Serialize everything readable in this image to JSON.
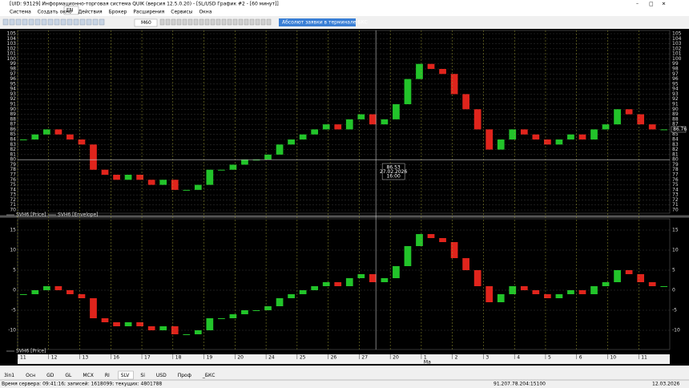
{
  "window": {
    "title": "[UID: 93129] Информационно-торговая система QUIK (версия 12.5.0.20) - [SL/USD График #2 - [60 минут]]"
  },
  "menu": [
    "Система",
    "Создать окно",
    "Действия",
    "Брокер",
    "Расширения",
    "Сервисы",
    "Окна"
  ],
  "lang_popup": "EN",
  "toolbar": {
    "interval": "M60",
    "link": "Абсолют заявки в терминале БКС"
  },
  "price_chart": {
    "type": "candlestick",
    "ylim": [
      70,
      105
    ],
    "yticks": [
      70,
      71,
      72,
      73,
      74,
      75,
      76,
      77,
      78,
      79,
      80,
      81,
      82,
      83,
      84,
      85,
      86,
      87,
      88,
      89,
      90,
      91,
      92,
      93,
      94,
      95,
      96,
      97,
      98,
      99,
      100,
      101,
      102,
      103,
      104,
      105
    ],
    "closes": [
      84,
      85,
      86,
      85,
      84,
      83,
      78,
      77,
      76,
      77,
      76,
      75,
      76,
      74,
      74,
      75,
      78,
      78,
      79,
      80,
      80,
      81,
      83,
      84,
      85,
      86,
      87,
      86,
      88,
      89,
      87,
      88,
      91,
      96,
      99,
      98,
      97,
      93,
      90,
      86,
      82,
      84,
      86,
      85,
      84,
      83,
      84,
      85,
      84,
      86,
      87,
      90,
      89,
      87,
      86,
      86
    ],
    "up_color": "#22c42a",
    "down_color": "#e0241c",
    "last_price": "86.76",
    "legend": [
      "SVH6 [Price]",
      "SVH6 [Envelope]"
    ],
    "crosshair": {
      "price": "86.53",
      "date": "27.02.2026",
      "time": "16:00"
    }
  },
  "lower_chart": {
    "type": "candlestick",
    "ylim": [
      -14,
      17
    ],
    "yticks": [
      -10,
      -5,
      0,
      5,
      10,
      15
    ],
    "values": [
      -1,
      0,
      1,
      0,
      -1,
      -2,
      -7,
      -8,
      -9,
      -8,
      -9,
      -10,
      -9,
      -11,
      -11,
      -10,
      -7,
      -7,
      -6,
      -5,
      -5,
      -4,
      -2,
      -1,
      0,
      1,
      2,
      1,
      3,
      4,
      2,
      3,
      6,
      11,
      14,
      13,
      12,
      8,
      5,
      1,
      -3,
      -1,
      1,
      0,
      -1,
      -2,
      -1,
      0,
      -1,
      1,
      2,
      5,
      4,
      2,
      1,
      1
    ],
    "legend": [
      "SVH6 [Price]"
    ]
  },
  "x_axis": {
    "labels": [
      "11",
      "12",
      "13",
      "16",
      "17",
      "18",
      "19",
      "20",
      "24",
      "25",
      "26",
      "27",
      "20",
      "1",
      "2",
      "3",
      "4",
      "5",
      "6",
      "10",
      "11"
    ],
    "month": "Ма"
  },
  "tabs": [
    "3in1",
    "Осн",
    "GD",
    "GL",
    "MCX",
    "RI",
    "SLV",
    "Si",
    "USD",
    "Проф",
    "_БКС"
  ],
  "active_tab": 6,
  "status": {
    "left": "Время сервера: 09:41:16; записей: 1618099; текущих: 4801788",
    "server": "91.207.78.204:15100",
    "date": "12.03.2026"
  }
}
